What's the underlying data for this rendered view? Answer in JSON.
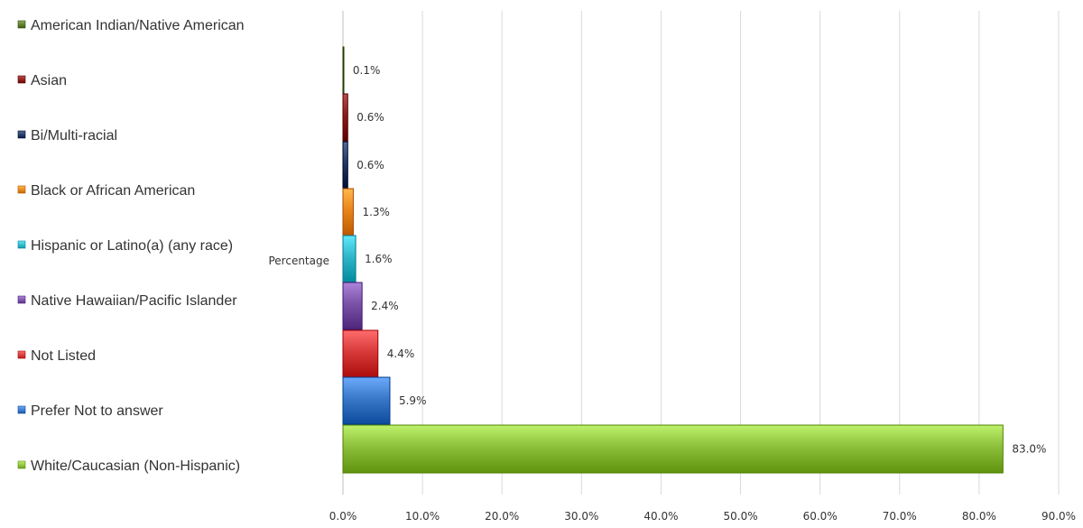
{
  "chart_data": {
    "type": "bar",
    "orientation": "horizontal",
    "series_label": "Percentage",
    "categories": [
      "American Indian/Native American",
      "Asian",
      "Bi/Multi-racial",
      "Black or African American",
      "Hispanic or Latino(a) (any race)",
      "Native Hawaiian/Pacific Islander",
      "Not Listed",
      "Prefer Not to answer",
      "White/Caucasian (Non-Hispanic)"
    ],
    "values": [
      0.1,
      0.6,
      0.6,
      1.3,
      1.6,
      2.4,
      4.4,
      5.9,
      83.0
    ],
    "data_labels": [
      "0.1%",
      "0.6%",
      "0.6%",
      "1.3%",
      "1.6%",
      "2.4%",
      "4.4%",
      "5.9%",
      "83.0%"
    ],
    "colors": [
      "#5a7a2a",
      "#8b1c1c",
      "#1f3a63",
      "#e8861a",
      "#2fb6c9",
      "#7a52a8",
      "#d83a3a",
      "#3a78c9",
      "#8cbf3a"
    ],
    "xlim": [
      0,
      90
    ],
    "xticks": [
      "0.0%",
      "10.0%",
      "20.0%",
      "30.0%",
      "40.0%",
      "50.0%",
      "60.0%",
      "70.0%",
      "80.0%",
      "90.0%"
    ],
    "grid": true,
    "legend_position": "left"
  }
}
